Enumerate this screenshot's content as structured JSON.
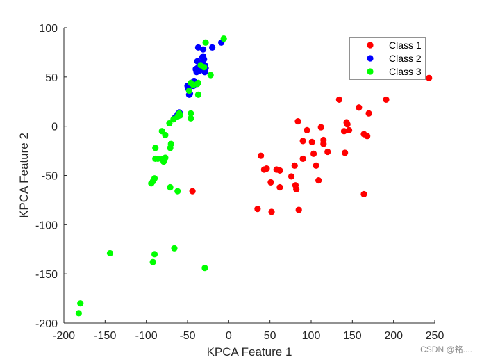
{
  "watermark": "CSDN @铭....",
  "chart_data": {
    "type": "scatter",
    "title": "",
    "xlabel": "KPCA Feature 1",
    "ylabel": "KPCA Feature 2",
    "xlim": [
      -200,
      250
    ],
    "ylim": [
      -200,
      100
    ],
    "xticks": [
      -200,
      -150,
      -100,
      -50,
      0,
      50,
      100,
      150,
      200,
      250
    ],
    "yticks": [
      100,
      50,
      0,
      -50,
      -100,
      -150,
      -200
    ],
    "grid": false,
    "legend_position": "top-right",
    "series": [
      {
        "name": "Class 1",
        "color": "#ff0000",
        "points": [
          [
            35,
            -84
          ],
          [
            39,
            -30
          ],
          [
            43,
            -44
          ],
          [
            46,
            -43
          ],
          [
            51,
            -57
          ],
          [
            52,
            -87
          ],
          [
            58,
            -44
          ],
          [
            62,
            -45
          ],
          [
            62,
            -62
          ],
          [
            76,
            -51
          ],
          [
            80,
            -40
          ],
          [
            81,
            -60
          ],
          [
            82,
            -64
          ],
          [
            84,
            5
          ],
          [
            85,
            -85
          ],
          [
            90,
            -15
          ],
          [
            90,
            -33
          ],
          [
            95,
            -4
          ],
          [
            101,
            -16
          ],
          [
            103,
            -28
          ],
          [
            106,
            -40
          ],
          [
            109,
            -55
          ],
          [
            112,
            -1
          ],
          [
            115,
            -14
          ],
          [
            115,
            -18
          ],
          [
            120,
            -26
          ],
          [
            134,
            27
          ],
          [
            140,
            -5
          ],
          [
            141,
            -27
          ],
          [
            143,
            4
          ],
          [
            144,
            2
          ],
          [
            146,
            -4
          ],
          [
            158,
            19
          ],
          [
            164,
            -69
          ],
          [
            164,
            -8
          ],
          [
            168,
            -10
          ],
          [
            170,
            13
          ],
          [
            191,
            27
          ],
          [
            243,
            49
          ],
          [
            -44,
            -66
          ]
        ]
      },
      {
        "name": "Class 2",
        "color": "#0000ff",
        "points": [
          [
            -65,
            9
          ],
          [
            -62,
            12
          ],
          [
            -60,
            14
          ],
          [
            -59,
            13
          ],
          [
            -50,
            41
          ],
          [
            -49,
            38
          ],
          [
            -48,
            32
          ],
          [
            -47,
            33
          ],
          [
            -45,
            44
          ],
          [
            -44,
            42
          ],
          [
            -43,
            41
          ],
          [
            -42,
            46
          ],
          [
            -41,
            44
          ],
          [
            -40,
            58
          ],
          [
            -39,
            55
          ],
          [
            -38,
            66
          ],
          [
            -37,
            60
          ],
          [
            -37,
            80
          ],
          [
            -36,
            56
          ],
          [
            -35,
            58
          ],
          [
            -34,
            64
          ],
          [
            -33,
            58
          ],
          [
            -33,
            62
          ],
          [
            -32,
            70
          ],
          [
            -31,
            78
          ],
          [
            -31,
            71
          ],
          [
            -30,
            68
          ],
          [
            -29,
            62
          ],
          [
            -29,
            55
          ],
          [
            -28,
            59
          ],
          [
            -20,
            80
          ],
          [
            -9,
            85
          ]
        ]
      },
      {
        "name": "Class 3",
        "color": "#00ff00",
        "points": [
          [
            -182,
            -190
          ],
          [
            -180,
            -180
          ],
          [
            -144,
            -129
          ],
          [
            -92,
            -138
          ],
          [
            -90,
            -130
          ],
          [
            -94,
            -58
          ],
          [
            -92,
            -56
          ],
          [
            -90,
            -53
          ],
          [
            -89,
            -22
          ],
          [
            -89,
            -33
          ],
          [
            -86,
            -33
          ],
          [
            -81,
            -5
          ],
          [
            -80,
            -33
          ],
          [
            -79,
            -36
          ],
          [
            -77,
            -32
          ],
          [
            -77,
            -9
          ],
          [
            -71,
            -22
          ],
          [
            -70,
            -18
          ],
          [
            -71,
            -62
          ],
          [
            -66,
            -124
          ],
          [
            -72,
            3
          ],
          [
            -67,
            7
          ],
          [
            -62,
            -66
          ],
          [
            -62,
            10
          ],
          [
            -60,
            13
          ],
          [
            -59,
            11
          ],
          [
            -46,
            13
          ],
          [
            -46,
            8
          ],
          [
            -48,
            36
          ],
          [
            -46,
            44
          ],
          [
            -43,
            42
          ],
          [
            -38,
            43
          ],
          [
            -37,
            32
          ],
          [
            -37,
            44
          ],
          [
            -34,
            62
          ],
          [
            -30,
            60
          ],
          [
            -29,
            -144
          ],
          [
            -28,
            85
          ],
          [
            -22,
            52
          ],
          [
            -6,
            89
          ]
        ]
      }
    ]
  }
}
